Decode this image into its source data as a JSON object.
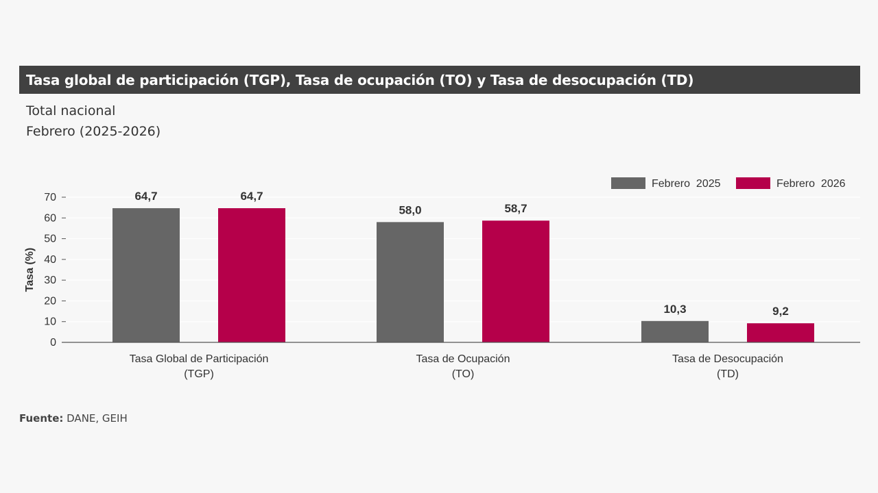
{
  "header": {
    "title": "Tasa global de participación (TGP), Tasa de ocupación (TO) y Tasa de desocupación (TD)",
    "subtitle_line1": "Total nacional",
    "subtitle_line2": "Febrero (2025-2026)"
  },
  "footer": {
    "source_label": "Fuente:",
    "source_text": " DANE, GEIH"
  },
  "colors": {
    "series_2025": "#666666",
    "series_2026": "#b5004a",
    "title_bar": "#414141"
  },
  "chart_data": {
    "type": "bar",
    "categories": [
      [
        "Tasa Global de Participación",
        "(TGP)"
      ],
      [
        "Tasa de Ocupación",
        "(TO)"
      ],
      [
        "Tasa de Desocupación",
        "(TD)"
      ]
    ],
    "series": [
      {
        "name": "Febrero  2025",
        "values": [
          64.7,
          58.0,
          10.3
        ],
        "labels": [
          "64,7",
          "58,0",
          "10,3"
        ]
      },
      {
        "name": "Febrero  2026",
        "values": [
          64.7,
          58.7,
          9.2
        ],
        "labels": [
          "64,7",
          "58,7",
          "9,2"
        ]
      }
    ],
    "ylabel": "Tasa (%)",
    "xlabel": "",
    "ylim": [
      0,
      70
    ],
    "yticks": [
      0,
      10,
      20,
      30,
      40,
      50,
      60,
      70
    ],
    "grid": true,
    "legend_position": "top-right"
  }
}
